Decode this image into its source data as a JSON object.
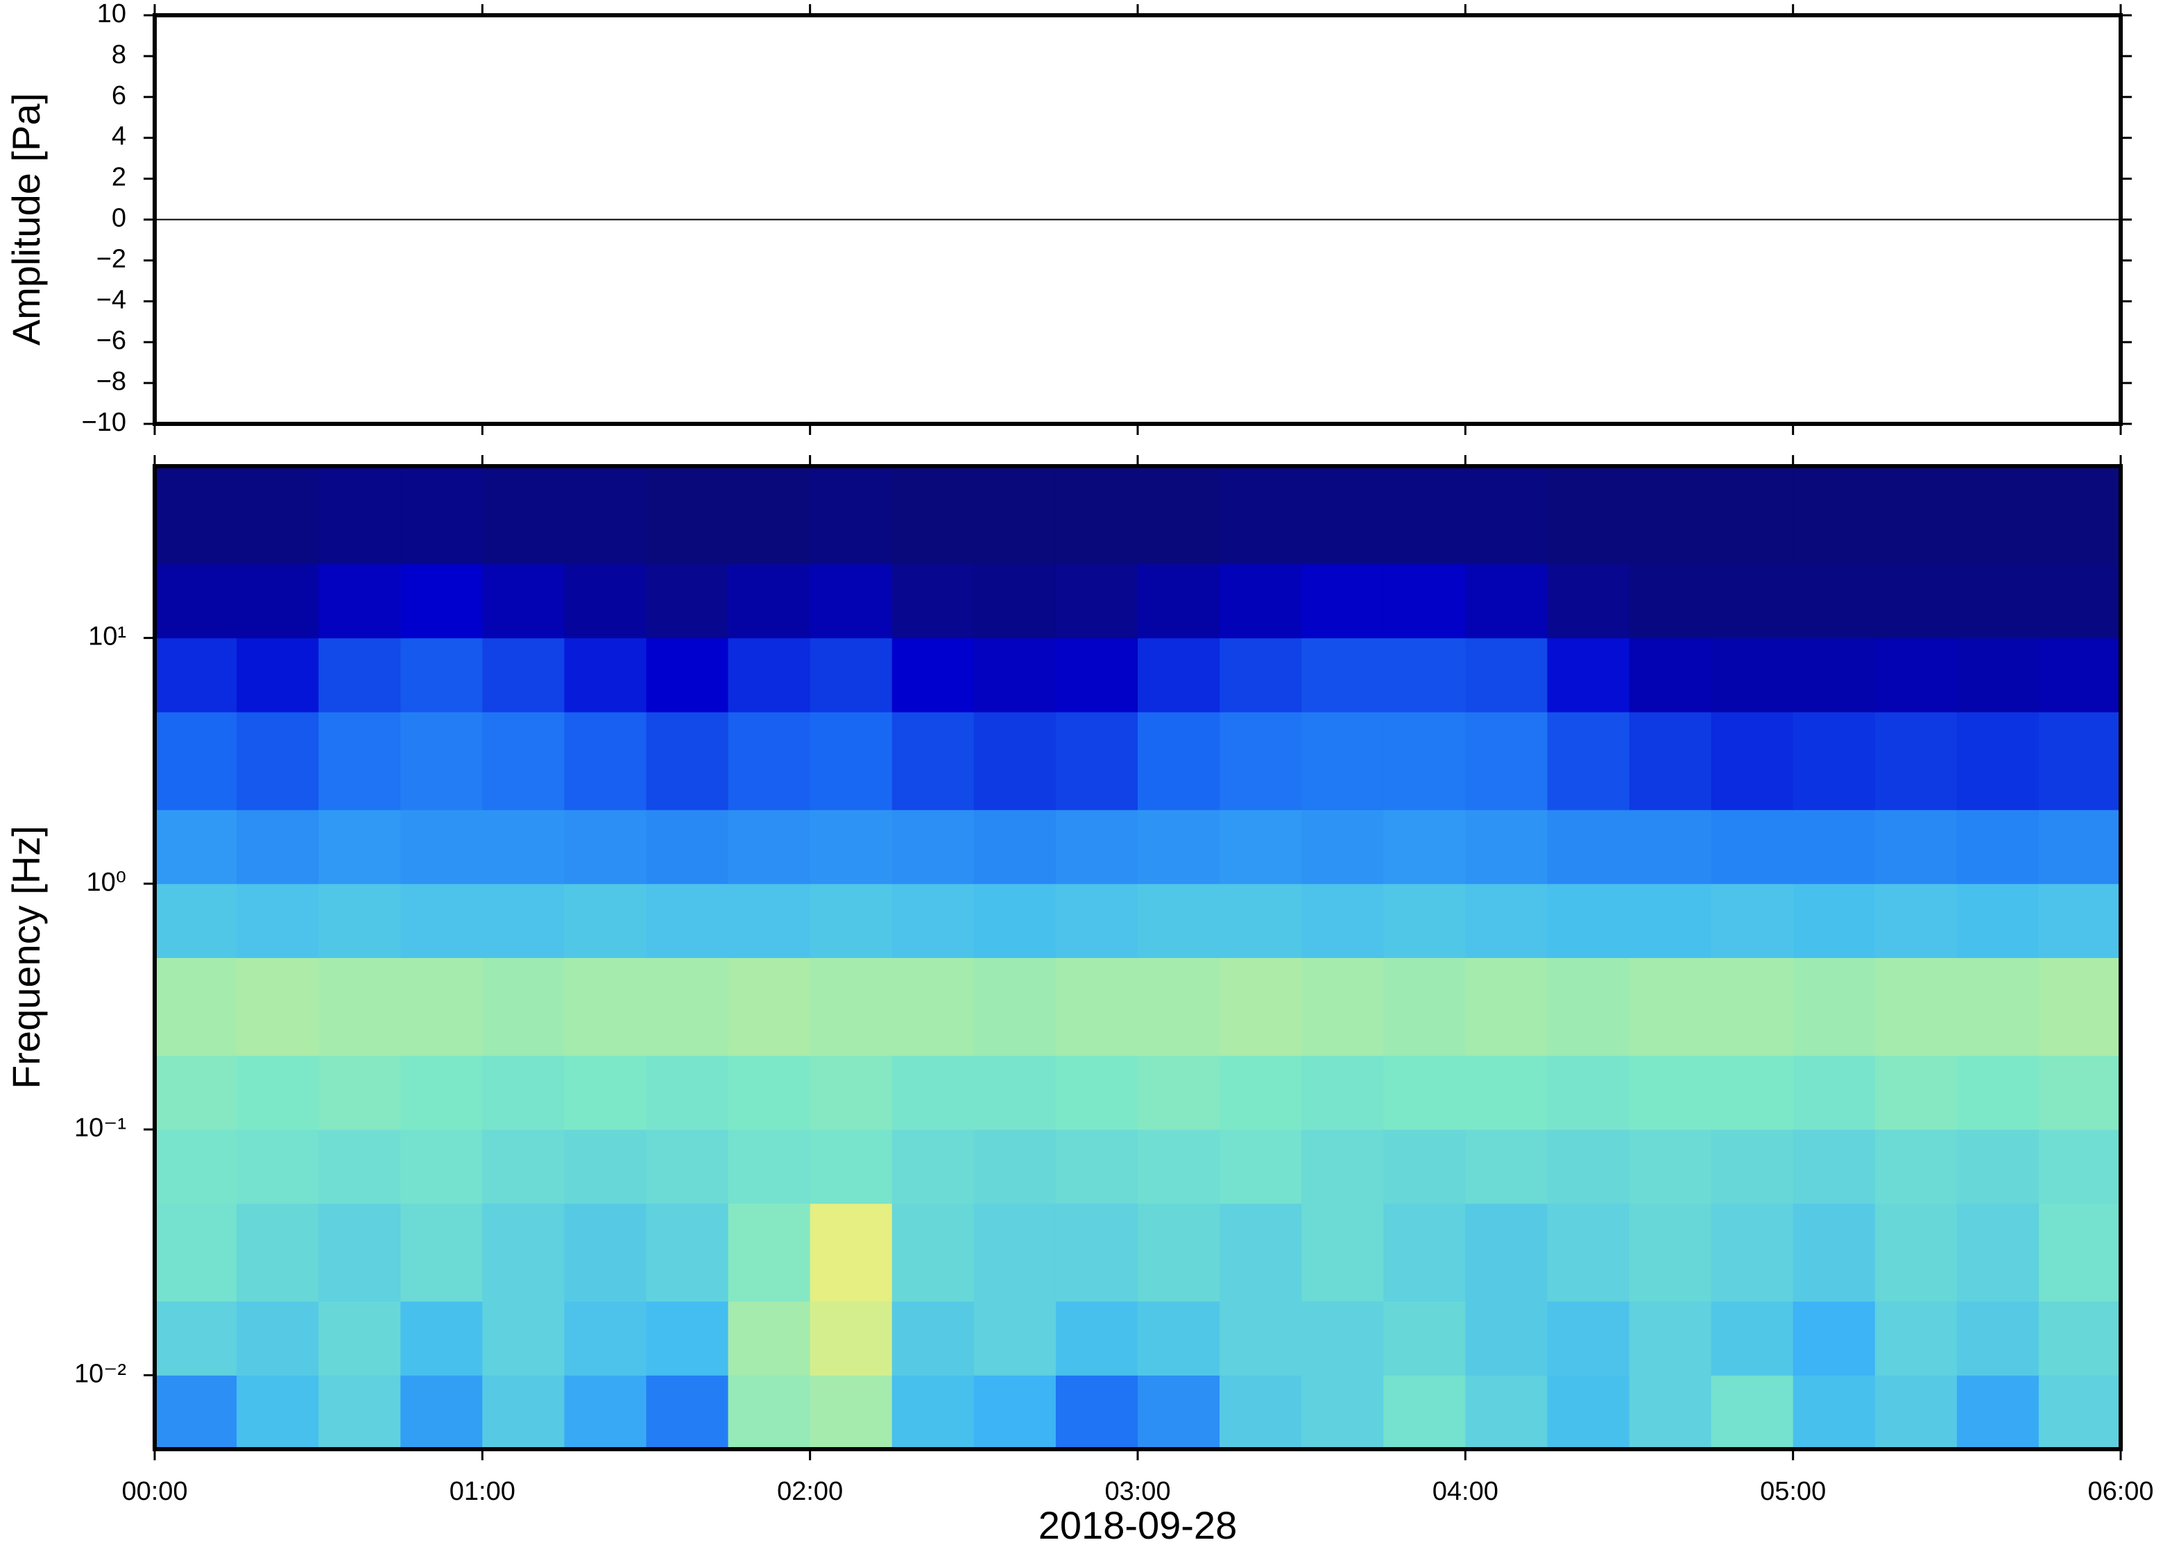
{
  "chart_data": [
    {
      "type": "line",
      "ylabel": "Amplitude [Pa]",
      "color": "#000000",
      "x": [
        0,
        0.5,
        1,
        1.5,
        2,
        2.5,
        3,
        3.5,
        4,
        4.5,
        5,
        5.5,
        6
      ],
      "values": [
        0,
        0,
        0,
        0,
        0,
        0,
        0,
        0,
        0,
        0,
        0,
        0,
        0
      ],
      "xlim": [
        0,
        6
      ],
      "ylim": [
        -10,
        10
      ],
      "yticks": [
        {
          "value": -10,
          "label": "−10"
        },
        {
          "value": -8,
          "label": "−8"
        },
        {
          "value": -6,
          "label": "−6"
        },
        {
          "value": -4,
          "label": "−4"
        },
        {
          "value": -2,
          "label": "−2"
        },
        0,
        2,
        4,
        6,
        8,
        10
      ]
    },
    {
      "type": "heatmap",
      "ylabel": "Frequency [Hz]",
      "xlabel": "2018-09-28",
      "log_y": true,
      "xlim": [
        0,
        6
      ],
      "ylim": [
        0.005,
        50
      ],
      "xticks": [
        {
          "value": 0,
          "label": "00:00"
        },
        {
          "value": 1,
          "label": "01:00"
        },
        {
          "value": 2,
          "label": "02:00"
        },
        {
          "value": 3,
          "label": "03:00"
        },
        {
          "value": 4,
          "label": "04:00"
        },
        {
          "value": 5,
          "label": "05:00"
        },
        {
          "value": 6,
          "label": "06:00"
        }
      ],
      "yticks": [
        {
          "value": 0.01,
          "label": "10⁻²"
        },
        {
          "value": 0.1,
          "label": "10⁻¹"
        },
        {
          "value": 1,
          "label": "10⁰"
        },
        {
          "value": 10,
          "label": "10¹"
        }
      ],
      "colormap": [
        "#0a0a6e",
        "#0000d0",
        "#1a6cf5",
        "#3fb9f5",
        "#7ee8c8",
        "#f0f07a",
        "#f08a2a",
        "#b01010"
      ],
      "zlim": [
        0,
        1
      ],
      "x_bins": [
        0,
        0.25,
        0.5,
        0.75,
        1,
        1.25,
        1.5,
        1.75,
        2,
        2.25,
        2.5,
        2.75,
        3,
        3.25,
        3.5,
        3.75,
        4,
        4.25,
        4.5,
        4.75,
        5,
        5.25,
        5.5,
        5.75,
        6
      ],
      "y_bins": [
        0.005,
        0.01,
        0.02,
        0.05,
        0.1,
        0.2,
        0.5,
        1,
        2,
        5,
        10,
        20,
        50
      ],
      "z": [
        [
          0.35,
          0.45,
          0.5,
          0.38,
          0.48,
          0.4,
          0.32,
          0.6,
          0.62,
          0.45,
          0.42,
          0.3,
          0.35,
          0.48,
          0.5,
          0.55,
          0.5,
          0.45,
          0.5,
          0.55,
          0.45,
          0.48,
          0.4,
          0.5
        ],
        [
          0.5,
          0.48,
          0.52,
          0.45,
          0.5,
          0.46,
          0.44,
          0.62,
          0.68,
          0.48,
          0.5,
          0.45,
          0.47,
          0.5,
          0.5,
          0.52,
          0.48,
          0.46,
          0.5,
          0.47,
          0.42,
          0.5,
          0.48,
          0.52
        ],
        [
          0.55,
          0.52,
          0.5,
          0.53,
          0.5,
          0.48,
          0.5,
          0.58,
          0.7,
          0.52,
          0.5,
          0.5,
          0.52,
          0.5,
          0.53,
          0.5,
          0.48,
          0.5,
          0.52,
          0.5,
          0.48,
          0.52,
          0.5,
          0.55
        ],
        [
          0.56,
          0.55,
          0.54,
          0.55,
          0.53,
          0.52,
          0.53,
          0.55,
          0.56,
          0.53,
          0.52,
          0.53,
          0.54,
          0.55,
          0.53,
          0.52,
          0.53,
          0.52,
          0.53,
          0.52,
          0.51,
          0.53,
          0.52,
          0.54
        ],
        [
          0.58,
          0.57,
          0.58,
          0.57,
          0.56,
          0.57,
          0.56,
          0.57,
          0.58,
          0.56,
          0.56,
          0.57,
          0.58,
          0.57,
          0.56,
          0.57,
          0.57,
          0.56,
          0.57,
          0.57,
          0.56,
          0.58,
          0.57,
          0.58
        ],
        [
          0.62,
          0.63,
          0.62,
          0.62,
          0.61,
          0.62,
          0.62,
          0.63,
          0.62,
          0.62,
          0.61,
          0.62,
          0.62,
          0.63,
          0.62,
          0.61,
          0.62,
          0.61,
          0.62,
          0.62,
          0.61,
          0.62,
          0.62,
          0.63
        ],
        [
          0.47,
          0.46,
          0.47,
          0.46,
          0.46,
          0.47,
          0.46,
          0.46,
          0.47,
          0.46,
          0.45,
          0.46,
          0.47,
          0.47,
          0.46,
          0.47,
          0.46,
          0.45,
          0.45,
          0.46,
          0.45,
          0.46,
          0.45,
          0.46
        ],
        [
          0.37,
          0.35,
          0.37,
          0.36,
          0.36,
          0.35,
          0.34,
          0.35,
          0.36,
          0.35,
          0.34,
          0.35,
          0.36,
          0.37,
          0.36,
          0.37,
          0.36,
          0.34,
          0.34,
          0.33,
          0.33,
          0.34,
          0.33,
          0.34
        ],
        [
          0.28,
          0.26,
          0.3,
          0.32,
          0.3,
          0.27,
          0.24,
          0.27,
          0.28,
          0.24,
          0.22,
          0.23,
          0.28,
          0.3,
          0.31,
          0.31,
          0.3,
          0.25,
          0.22,
          0.2,
          0.21,
          0.22,
          0.21,
          0.22
        ],
        [
          0.2,
          0.17,
          0.24,
          0.26,
          0.23,
          0.18,
          0.14,
          0.2,
          0.22,
          0.14,
          0.12,
          0.13,
          0.2,
          0.23,
          0.25,
          0.25,
          0.24,
          0.16,
          0.1,
          0.09,
          0.09,
          0.1,
          0.09,
          0.1
        ],
        [
          0.08,
          0.08,
          0.12,
          0.14,
          0.1,
          0.07,
          0.05,
          0.08,
          0.1,
          0.05,
          0.04,
          0.05,
          0.08,
          0.11,
          0.13,
          0.13,
          0.1,
          0.05,
          0.03,
          0.03,
          0.03,
          0.03,
          0.03,
          0.03
        ],
        [
          0.03,
          0.03,
          0.04,
          0.04,
          0.03,
          0.03,
          0.02,
          0.02,
          0.03,
          0.02,
          0.02,
          0.02,
          0.02,
          0.03,
          0.03,
          0.03,
          0.03,
          0.02,
          0.02,
          0.02,
          0.02,
          0.02,
          0.02,
          0.02
        ]
      ]
    }
  ]
}
